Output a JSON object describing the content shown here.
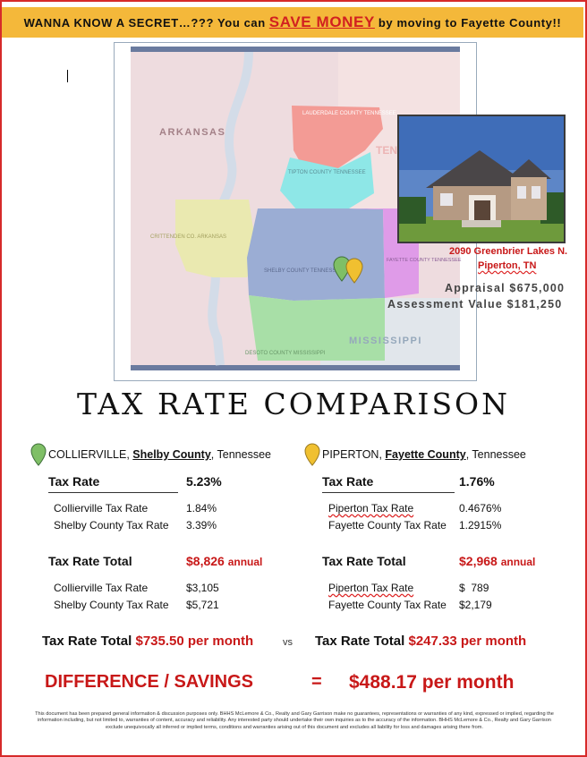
{
  "banner": {
    "prefix": "WANNA KNOW A SECRET…??? You can",
    "highlight": "SAVE MONEY",
    "suffix": "by moving to Fayette County!!"
  },
  "map": {
    "labels": {
      "arkansas": "ARKANSAS",
      "lauderdale": "LAUDERDALE COUNTY TENNESSEE",
      "tenn": "TEN",
      "tipton": "TIPTON COUNTY TENNESSEE",
      "crittenden": "CRITTENDEN CO. ARKANSAS",
      "shelby": "SHELBY COUNTY TENNESSEE",
      "fayette": "FAYETTE COUNTY TENNESSEE",
      "mississippi": "MISSISSIPPI",
      "desoto": "DESOTO COUNTY MISSISSIPPI"
    },
    "colors": {
      "pin_green": "#7fbf66",
      "pin_yellow": "#f0c030"
    }
  },
  "property": {
    "address_line1": "2090 Greenbrier Lakes N.",
    "address_line2": "Piperton, TN",
    "appraisal": "Appraisal $675,000",
    "assessment": "Assessment Value $181,250"
  },
  "title": "TAX RATE COMPARISON",
  "left": {
    "city": "COLLIERVILLE,",
    "county": "Shelby County",
    "state": ", Tennessee",
    "tax_rate_label": "Tax Rate",
    "tax_rate_value": "5.23%",
    "rates": [
      {
        "label": "Collierville Tax Rate",
        "value": "1.84%"
      },
      {
        "label": "Shelby County Tax Rate",
        "value": "3.39%"
      }
    ],
    "total_label": "Tax Rate Total",
    "total_amount": "$8,826",
    "total_unit": "annual",
    "amounts": [
      {
        "label": "Collierville Tax Rate",
        "value": "$3,105"
      },
      {
        "label": "Shelby County Tax Rate",
        "value": "$5,721"
      }
    ],
    "monthly_label": "Tax Rate Total",
    "monthly_value": "$735.50 per month"
  },
  "right": {
    "city": "PIPERTON,",
    "county": "Fayette County",
    "state": ", Tennessee",
    "tax_rate_label": "Tax Rate",
    "tax_rate_value": "1.76%",
    "rates": [
      {
        "label": "Piperton Tax Rate",
        "value": "0.4676%"
      },
      {
        "label": "Fayette County Tax Rate",
        "value": "1.2915%"
      }
    ],
    "total_label": "Tax Rate Total",
    "total_amount": "$2,968",
    "total_unit": "annual",
    "amounts": [
      {
        "label": "Piperton Tax Rate",
        "value": "$  789"
      },
      {
        "label": "Fayette County Tax Rate",
        "value": "$2,179"
      }
    ],
    "monthly_label": "Tax Rate Total",
    "monthly_value": "$247.33 per month"
  },
  "vs": "vs",
  "difference_label": "DIFFERENCE / SAVINGS",
  "equals": "=",
  "difference_value": "$488.17 per month",
  "disclaimer": "This document has been prepared general information & discussion purposes only. BHHS McLemore & Co., Realty and Gary Garrison make no guarantees, representations or warranties of any kind, expressed or implied, regarding the information including, but not limited to, warranties of content, accuracy and reliability. Any interested party should undertake their own inquiries as to the accuracy of the information. BHHS McLemore & Co., Realty and Gary Garrison exclude unequivocally all inferred or implied terms, conditions and warranties arising out of this document and excludes all liability for loss and damages arising there from."
}
